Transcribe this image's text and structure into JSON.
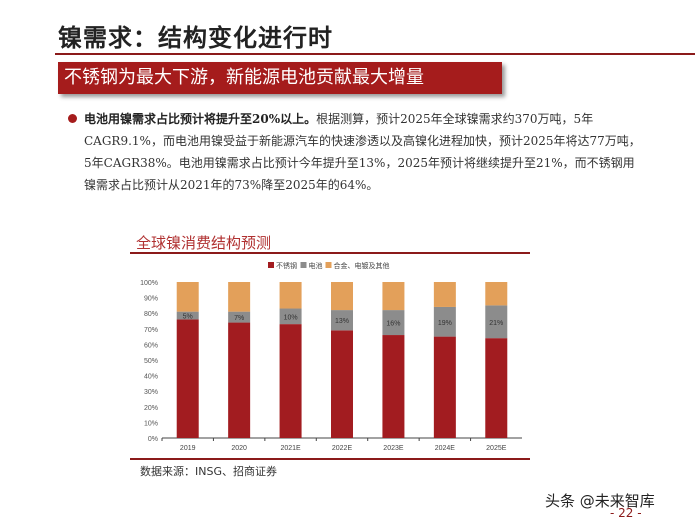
{
  "title": "镍需求：结构变化进行时",
  "banner": "不锈钢为最大下游，新能源电池贡献最大增量",
  "paragraph": {
    "bold": "电池用镍需求占比预计将提升至20%以上。",
    "rest": "根据测算，预计2025年全球镍需求约370万吨，5年CAGR9.1%，而电池用镍受益于新能源汽车的快速渗透以及高镍化进程加快，预计2025年将达77万吨，5年CAGR38%。电池用镍需求占比预计今年提升至13%，2025年预计将继续提升至21%，而不锈钢用镍需求占比预计从2021年的73%降至2025年的64%。"
  },
  "chart_title": "全球镍消费结构预测",
  "source": "数据来源：INSG、招商证券",
  "watermark": "头条 @未来智库",
  "page_number": "- 22 -",
  "chart_data": {
    "type": "bar",
    "stacked": true,
    "categories": [
      "2019",
      "2020",
      "2021E",
      "2022E",
      "2023E",
      "2024E",
      "2025E"
    ],
    "series": [
      {
        "name": "不锈钢",
        "color": "#a21c20",
        "values": [
          76,
          74,
          73,
          69,
          66,
          65,
          64
        ]
      },
      {
        "name": "电池",
        "color": "#8c8c8c",
        "values": [
          5,
          7,
          10,
          13,
          16,
          19,
          21
        ],
        "labels": [
          "5%",
          "7%",
          "10%",
          "13%",
          "16%",
          "19%",
          "21%"
        ]
      },
      {
        "name": "合金、电镀及其他",
        "color": "#e3a05a",
        "values": [
          19,
          19,
          17,
          18,
          18,
          16,
          15
        ]
      }
    ],
    "yticks": [
      "0%",
      "10%",
      "20%",
      "30%",
      "40%",
      "50%",
      "60%",
      "70%",
      "80%",
      "90%",
      "100%"
    ],
    "ylim": [
      0,
      100
    ],
    "legend": "top"
  }
}
